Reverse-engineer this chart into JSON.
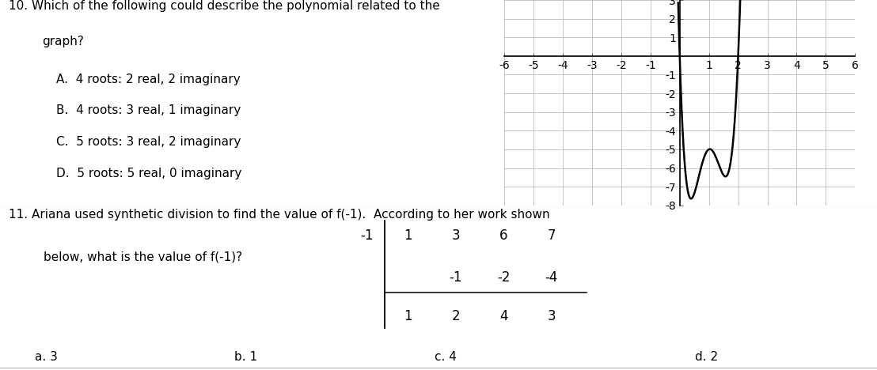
{
  "bg_color": "#ffffff",
  "q10_number": "10.",
  "q10_text_line1": "Which of the following could describe the polynomial related to the",
  "q10_text_line2": "graph?",
  "q10_options": [
    "A.  4 roots: 2 real, 2 imaginary",
    "B.  4 roots: 3 real, 1 imaginary",
    "C.  5 roots: 3 real, 2 imaginary",
    "D.  5 roots: 5 real, 0 imaginary"
  ],
  "q11_number": "11.",
  "q11_text_line1": "Ariana used synthetic division to find the value of f(-1).  According to her work shown",
  "q11_text_line2": "below, what is the value of f(-1)?",
  "synth_divisor": "-1",
  "synth_row1": [
    "1",
    "3",
    "6",
    "7"
  ],
  "synth_row2": [
    "-1",
    "-2",
    "-4"
  ],
  "synth_row3": [
    "1",
    "2",
    "4",
    "3"
  ],
  "q11_answers": [
    "a. 3",
    "b. 1",
    "c. 4",
    "d. 2"
  ],
  "graph_xlim": [
    -6,
    6
  ],
  "graph_ylim": [
    -8,
    3
  ],
  "curve_color": "#000000",
  "grid_color": "#bbbbbb",
  "axis_color": "#000000",
  "text_color": "#000000",
  "font_size_main": 11,
  "font_size_options": 11
}
